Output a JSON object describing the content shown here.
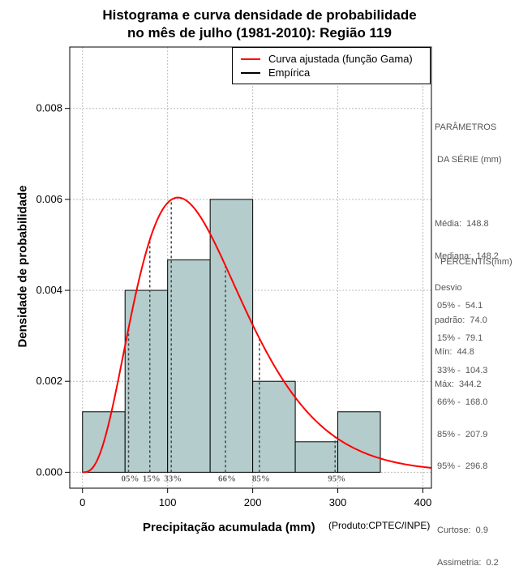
{
  "header": {
    "title_line1": "Histograma e curva densidade de probabilidade",
    "title_line2": "no mês de julho (1981-2010): Região 119"
  },
  "legend": {
    "fitted_label": "Curva ajustada (função Gama)",
    "fitted_color": "#ff0000",
    "empirical_label": "Empírica",
    "empirical_color": "#000000"
  },
  "parameters": {
    "title_line1": "PARÂMETROS",
    "title_line2": " DA SÉRIE (mm)",
    "items": [
      "Média:  148.8",
      "Mediana:  148.2",
      "Desvio",
      "padrão:  74.0",
      "Mín:  44.8",
      "Máx:  344.2"
    ]
  },
  "percentiles": {
    "title": "PERCENTIS(mm)",
    "items": [
      "05% -  54.1",
      "15% -  79.1",
      "33% -  104.3",
      "66% -  168.0",
      "85% -  207.9",
      "95% -  296.8"
    ]
  },
  "stats": {
    "items": [
      "Curtose:  0.9",
      "Assimetria:  0.2"
    ]
  },
  "credit": "(Produto:CPTEC/INPE)",
  "chart_data": {
    "type": "histogram",
    "title": "Histograma e curva densidade de probabilidade no mês de julho (1981-2010): Região 119",
    "xlabel": "Precipitação acumulada (mm)",
    "ylabel": "Densidade de probabilidade",
    "xlim": [
      -15,
      410
    ],
    "ylim": [
      -0.00035,
      0.00935
    ],
    "x_ticks": [
      0,
      100,
      200,
      300,
      400
    ],
    "y_ticks": [
      0.0,
      0.002,
      0.004,
      0.006,
      0.008
    ],
    "y_tick_labels": [
      "0.000",
      "0.002",
      "0.004",
      "0.006",
      "0.008"
    ],
    "grid": true,
    "bar_color": "#b4cccc",
    "bins": [
      {
        "start": 0,
        "end": 50,
        "density": 0.00133
      },
      {
        "start": 50,
        "end": 100,
        "density": 0.004
      },
      {
        "start": 100,
        "end": 150,
        "density": 0.00467
      },
      {
        "start": 150,
        "end": 200,
        "density": 0.006
      },
      {
        "start": 200,
        "end": 250,
        "density": 0.002
      },
      {
        "start": 250,
        "end": 300,
        "density": 0.00067
      },
      {
        "start": 300,
        "end": 350,
        "density": 0.00133
      }
    ],
    "gamma_fit": {
      "shape": 4.05,
      "scale": 36.8,
      "x_max": 410
    },
    "percentile_markers": [
      {
        "label": "05%",
        "value": 54.1
      },
      {
        "label": "15%",
        "value": 79.1
      },
      {
        "label": "33%",
        "value": 104.3
      },
      {
        "label": "66%",
        "value": 168.0
      },
      {
        "label": "85%",
        "value": 207.9
      },
      {
        "label": "95%",
        "value": 296.8
      }
    ]
  }
}
